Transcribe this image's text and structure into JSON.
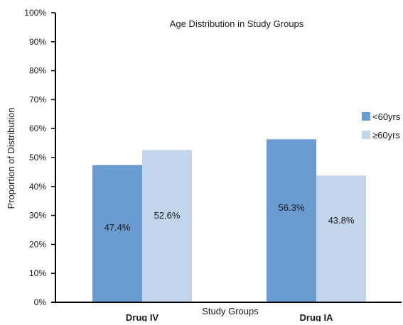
{
  "chart_data": {
    "type": "bar",
    "title": "Age Distribution in Study Groups",
    "xlabel": "Study Groups",
    "ylabel": "Proportion  of  Distribution",
    "categories": [
      "Drug IV",
      "Drug IA"
    ],
    "series": [
      {
        "name": "<60yrs",
        "values": [
          47.4,
          56.3
        ],
        "labels": [
          "47.4%",
          "56.3%"
        ],
        "color": "#6a9bd1"
      },
      {
        "name": "≥60yrs",
        "values": [
          52.6,
          43.8
        ],
        "labels": [
          "52.6%",
          "43.8%"
        ],
        "color": "#c3d5ea"
      }
    ],
    "ylim": [
      0,
      100
    ],
    "yticks": [
      0,
      10,
      20,
      30,
      40,
      50,
      60,
      70,
      80,
      90,
      100
    ],
    "ytick_labels": [
      "0%",
      "10%",
      "20%",
      "30%",
      "40%",
      "50%",
      "60%",
      "70%",
      "80%",
      "90%",
      "100%"
    ],
    "grid": false,
    "legend_position": "right"
  }
}
